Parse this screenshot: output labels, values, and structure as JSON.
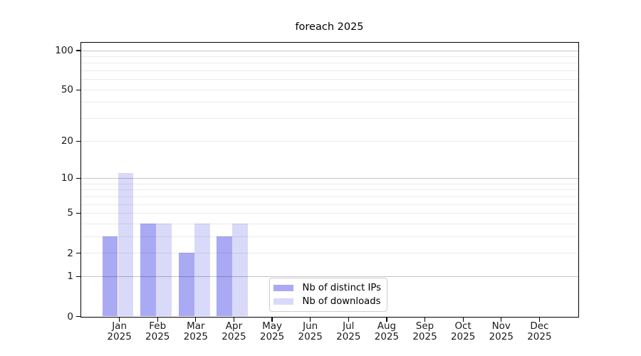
{
  "title": "foreach 2025",
  "chart_data": {
    "type": "bar",
    "title": "foreach 2025",
    "categories": [
      "Jan 2025",
      "Feb 2025",
      "Mar 2025",
      "Apr 2025",
      "May 2025",
      "Jun 2025",
      "Jul 2025",
      "Aug 2025",
      "Sep 2025",
      "Oct 2025",
      "Nov 2025",
      "Dec 2025"
    ],
    "months": [
      "Jan",
      "Feb",
      "Mar",
      "Apr",
      "May",
      "Jun",
      "Jul",
      "Aug",
      "Sep",
      "Oct",
      "Nov",
      "Dec"
    ],
    "year": "2025",
    "series": [
      {
        "name": "Nb of distinct IPs",
        "color": "#a9a9f4",
        "values": [
          3,
          4,
          2,
          3,
          0,
          0,
          0,
          0,
          0,
          0,
          0,
          0
        ]
      },
      {
        "name": "Nb of downloads",
        "color": "#d9d9f9",
        "values": [
          11,
          4,
          4,
          4,
          0,
          0,
          0,
          0,
          0,
          0,
          0,
          0
        ]
      }
    ],
    "yscale": "log1p",
    "ylim": [
      0,
      114
    ],
    "yticks": [
      0,
      1,
      2,
      5,
      10,
      20,
      50,
      100
    ],
    "ytick_labels": [
      "0",
      "1",
      "2",
      "5",
      "10",
      "20",
      "50",
      "100"
    ],
    "major_gridlines": [
      1,
      10,
      100
    ],
    "minor_gridlines": [
      2,
      3,
      4,
      5,
      6,
      7,
      8,
      9,
      20,
      30,
      40,
      50,
      60,
      70,
      80,
      90
    ],
    "grid": true,
    "legend_position": "inside-bottom-center",
    "colors": {
      "distinct_ips_bar": "#a9a9f4",
      "downloads_bar": "#d9d9f9",
      "major_grid": "#c5c5c5",
      "minor_grid": "#ebebeb",
      "axis": "#000000",
      "background": "#ffffff"
    }
  }
}
